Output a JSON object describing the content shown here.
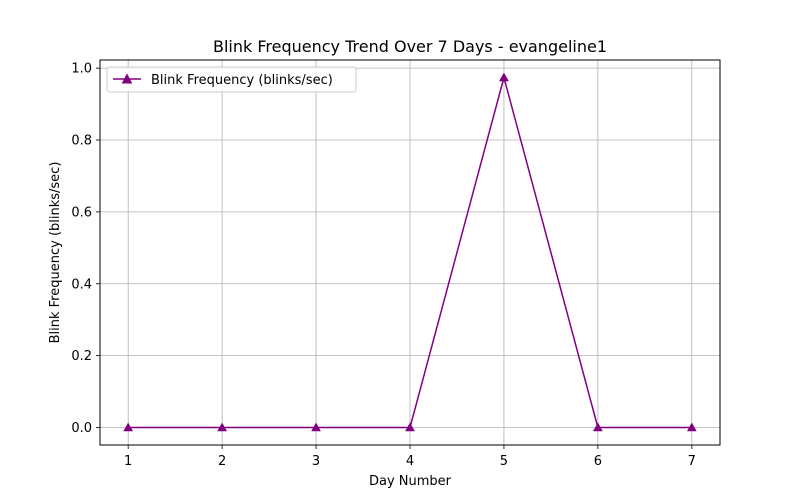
{
  "chart_data": {
    "type": "line",
    "title": "Blink Frequency Trend Over 7 Days - evangeline1",
    "xlabel": "Day Number",
    "ylabel": "Blink Frequency (blinks/sec)",
    "x": [
      1,
      2,
      3,
      4,
      5,
      6,
      7
    ],
    "x_tick_labels": [
      "1",
      "2",
      "3",
      "4",
      "5",
      "6",
      "7"
    ],
    "y_ticks": [
      0.0,
      0.2,
      0.4,
      0.6,
      0.8,
      1.0
    ],
    "y_tick_labels": [
      "0.0",
      "0.2",
      "0.4",
      "0.6",
      "0.8",
      "1.0"
    ],
    "xlim": [
      0.7,
      7.3
    ],
    "ylim": [
      -0.0487,
      1.0227
    ],
    "grid": true,
    "legend_position": "top-left",
    "series": [
      {
        "name": "Blink Frequency (blinks/sec)",
        "values": [
          0,
          0,
          0,
          0,
          0.974,
          0,
          0
        ],
        "color": "#800080",
        "marker": "triangle-up"
      }
    ]
  }
}
